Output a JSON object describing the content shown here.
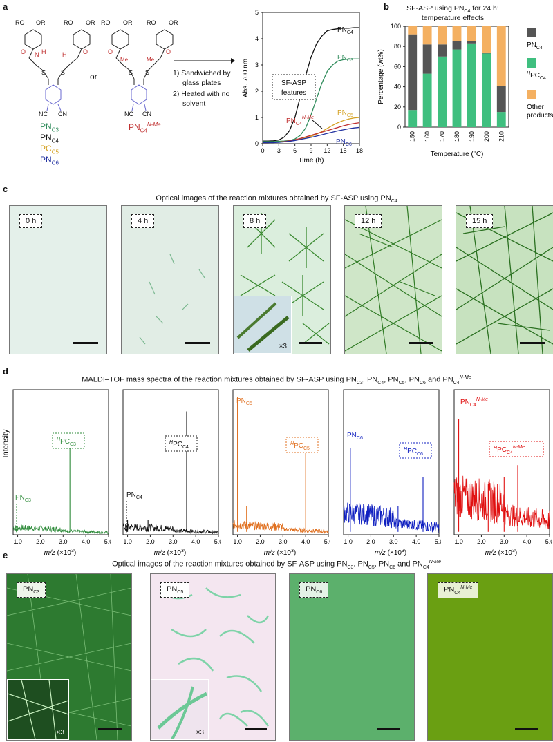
{
  "panel_labels": {
    "a": "a",
    "b": "b",
    "c": "c",
    "d": "d",
    "e": "e"
  },
  "panel_a": {
    "compound_labels": [
      "PN",
      "PN",
      "PC",
      "PN"
    ],
    "compound_subs": [
      "C3",
      "C4",
      "C5",
      "C6"
    ],
    "or": "or",
    "nme_label": "PN",
    "nme_sub": "C4",
    "nme_sup": "N-Me",
    "atom_R": "RO",
    "atom_OR": "OR",
    "atom_O": "O",
    "atom_N": "N",
    "atom_H": "H",
    "atom_S": "S",
    "atom_Me": "Me",
    "atom_NC": "NC",
    "atom_CN": "CN",
    "step1": "1)  Sandwiched by",
    "step1b": "glass plates",
    "step2": "2)  Heated with no",
    "step2b": "solvent",
    "plot_box": "SF-ASP",
    "plot_box2": "features",
    "ylabel": "Abs.",
    "ylabel_sub": "700 nm",
    "xlabel": "Time (h)",
    "series_labels": {
      "c4": "PN",
      "c3": "PN",
      "c5": "PN",
      "c6": "PN",
      "nme": "PN"
    },
    "series_subs": {
      "c4": "C4",
      "c3": "C3",
      "c5": "C5",
      "c6": "C6",
      "nme": "C4"
    },
    "nme_sup2": "N-Me"
  },
  "panel_b": {
    "title1": "SF-ASP using PN",
    "title1_sub": "C4",
    "title1_end": " for 24 h:",
    "title2": "temperature effects",
    "ylabel": "Percentage (wt%)",
    "xlabel": "Temperature (°C)",
    "legend": [
      {
        "text": "PN",
        "sub": "C4",
        "sup": ""
      },
      {
        "text": "PC",
        "sub": "C4",
        "sup": "H"
      },
      {
        "text": "Other",
        "sub": "",
        "sup": ""
      }
    ],
    "legend_other2": "products"
  },
  "panel_c": {
    "title": "Optical images of the reaction mixtures obtained by SF-ASP using PN",
    "title_sub": "C4",
    "tags": [
      "0 h",
      "4 h",
      "8 h",
      "12 h",
      "15 h"
    ],
    "inset": "×3"
  },
  "panel_d": {
    "title": "MALDI–TOF mass spectra of the reaction mixtures obtained by SF-ASP using PN",
    "title_rest": ", PN",
    "title_and": " and PN",
    "subs": [
      "C3",
      "C4",
      "C5",
      "C6",
      "C4"
    ],
    "sup": "N-Me",
    "ylabel": "Intensity",
    "xlabel": "m/z",
    "xlabel_unit": " (×10",
    "xlabel_exp": "3",
    "xlabel_close": ")",
    "ticks": [
      "1.0",
      "2.0",
      "3.0",
      "4.0",
      "5.0"
    ],
    "spectra": [
      {
        "name": "PN",
        "sub": "C3",
        "box": "PC",
        "box_sub": "C3",
        "color": "#2e8b3a"
      },
      {
        "name": "PN",
        "sub": "C4",
        "box": "PC",
        "box_sub": "C4",
        "color": "#111111"
      },
      {
        "name": "PN",
        "sub": "C5",
        "box": "PC",
        "box_sub": "C5",
        "color": "#e07020"
      },
      {
        "name": "PN",
        "sub": "C6",
        "box": "PC",
        "box_sub": "C6",
        "color": "#1020c0"
      },
      {
        "name": "PN",
        "sub": "C4",
        "box": "PC",
        "box_sub": "C4",
        "color": "#e01010"
      }
    ],
    "box_sup": "H"
  },
  "panel_e": {
    "title": "Optical images of the reaction mixtures obtained by SF-ASP using PN",
    "subs": [
      "C3",
      "C5",
      "C6",
      "C4"
    ],
    "sup": "N-Me",
    "tags": [
      "PN",
      "PN",
      "PN",
      "PN"
    ],
    "inset": "×3"
  },
  "chart_data": [
    {
      "type": "line",
      "title": "",
      "xlabel": "Time (h)",
      "ylabel": "Abs. 700 nm",
      "xlim": [
        0,
        18
      ],
      "ylim": [
        0,
        5
      ],
      "x": [
        0,
        1,
        2,
        3,
        4,
        5,
        6,
        7,
        8,
        9,
        10,
        11,
        12,
        13,
        14,
        15,
        16,
        17,
        18
      ],
      "series": [
        {
          "name": "PNC4",
          "color": "#111111",
          "values": [
            0.1,
            0.1,
            0.11,
            0.14,
            0.25,
            0.5,
            1.0,
            1.8,
            2.6,
            3.3,
            3.8,
            4.1,
            4.3,
            4.35,
            4.38,
            4.4,
            4.4,
            4.42,
            4.42
          ]
        },
        {
          "name": "PNC3",
          "color": "#2e8b5a",
          "values": [
            0.08,
            0.08,
            0.08,
            0.09,
            0.1,
            0.12,
            0.18,
            0.32,
            0.6,
            1.1,
            1.7,
            2.3,
            2.75,
            3.0,
            3.15,
            3.2,
            3.22,
            3.23,
            3.23
          ]
        },
        {
          "name": "PNC5",
          "color": "#d4a020",
          "values": [
            0.05,
            0.05,
            0.05,
            0.06,
            0.08,
            0.1,
            0.13,
            0.17,
            0.22,
            0.28,
            0.36,
            0.46,
            0.58,
            0.7,
            0.8,
            0.88,
            0.94,
            0.98,
            1.0
          ]
        },
        {
          "name": "PNC4N-Me",
          "color": "#c03030",
          "values": [
            0.04,
            0.04,
            0.05,
            0.06,
            0.08,
            0.11,
            0.15,
            0.2,
            0.26,
            0.32,
            0.38,
            0.44,
            0.5,
            0.56,
            0.62,
            0.68,
            0.73,
            0.77,
            0.8
          ]
        },
        {
          "name": "PNC6",
          "color": "#2030a0",
          "values": [
            0.04,
            0.04,
            0.04,
            0.05,
            0.07,
            0.09,
            0.12,
            0.16,
            0.2,
            0.24,
            0.29,
            0.34,
            0.39,
            0.44,
            0.49,
            0.53,
            0.57,
            0.6,
            0.62
          ]
        }
      ],
      "xticks": [
        "0",
        "3",
        "6",
        "9",
        "12",
        "15",
        "18"
      ],
      "yticks": [
        "0",
        "1",
        "2",
        "3",
        "4",
        "5"
      ]
    },
    {
      "type": "bar",
      "stacked": true,
      "title": "SF-ASP using PNC4 for 24 h: temperature effects",
      "xlabel": "Temperature (°C)",
      "ylabel": "Percentage (wt%)",
      "ylim": [
        0,
        100
      ],
      "categories": [
        "150",
        "160",
        "170",
        "180",
        "190",
        "200",
        "210"
      ],
      "series": [
        {
          "name": "HPC C4",
          "color": "#3fbf7f",
          "values": [
            17,
            53,
            70,
            77,
            83,
            73,
            15
          ]
        },
        {
          "name": "PN C4",
          "color": "#555555",
          "values": [
            75,
            29,
            12,
            8,
            2,
            1,
            26
          ]
        },
        {
          "name": "Other products",
          "color": "#f4b061",
          "values": [
            8,
            18,
            18,
            15,
            15,
            26,
            59
          ]
        }
      ],
      "yticks": [
        "0",
        "20",
        "40",
        "60",
        "80",
        "100"
      ]
    }
  ]
}
